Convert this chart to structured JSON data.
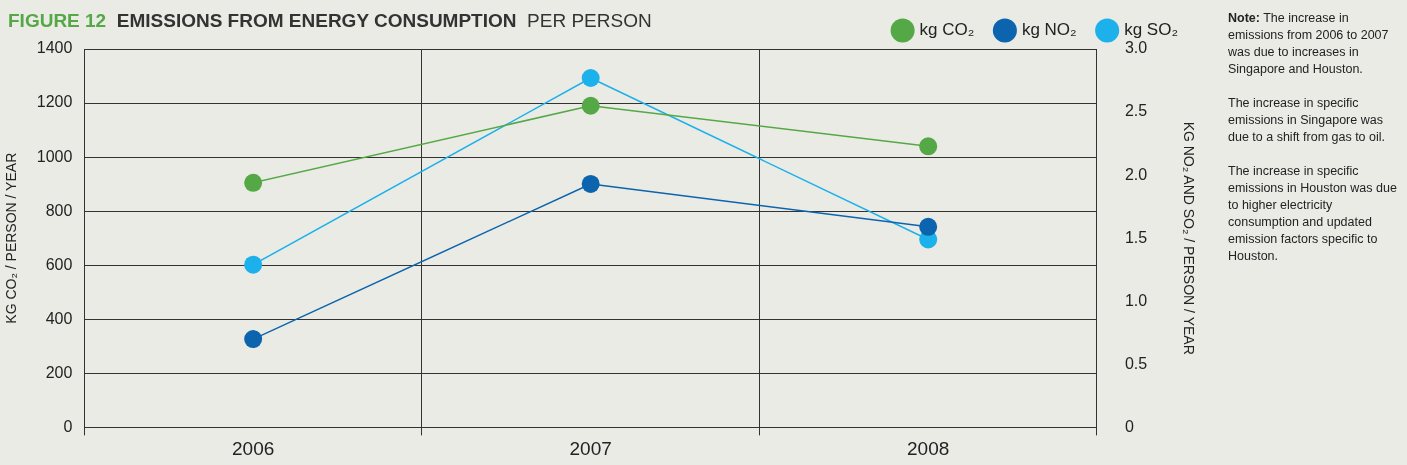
{
  "chart_data": {
    "type": "line",
    "title": "FIGURE 12 EMISSIONS FROM ENERGY CONSUMPTION",
    "subtitle": "PER PERSON",
    "ylabel": "KG CO₂ / PERSON / YEAR",
    "y2label": "KG NO₂ AND SO₂ / PERSON / YEAR",
    "categories": [
      "2006",
      "2007",
      "2008"
    ],
    "series": [
      {
        "name": "kg CO₂",
        "color": "#55a846",
        "values": [
          905,
          1190,
          1040
        ]
      },
      {
        "name": "kg NO₂",
        "color": "#0b64ad",
        "values": [
          0.7,
          1.93,
          1.59
        ],
        "axis": "y2"
      },
      {
        "name": "kg SO₂",
        "color": "#1cb1ea",
        "values": [
          1.29,
          2.77,
          1.49
        ],
        "axis": "y2"
      }
    ],
    "ylim": [
      0,
      1400
    ],
    "yticks": [
      0,
      200,
      400,
      600,
      800,
      1000,
      1200,
      1400
    ],
    "y2lim": [
      0,
      3
    ],
    "y2ticks": [
      0,
      0.5,
      {
        "value": 1,
        "label": "1.0"
      },
      1.5,
      {
        "value": 2,
        "label": "2.0"
      },
      2.5,
      {
        "value": 3,
        "label": "3.0"
      }
    ],
    "grid": true,
    "legend": "top right",
    "marker": "circle",
    "line_style": "solid",
    "annotations": [
      "Note: The increase in emissions from 2006 to 2007 was due to increases in Singapore and Houston.",
      "The increase in specific emissions in Singapore was due to a shift from gas to oil.",
      "The increase in specific emissions in Houston was due to higher electricity consumption and updated emission factors specific to Houston."
    ]
  }
}
